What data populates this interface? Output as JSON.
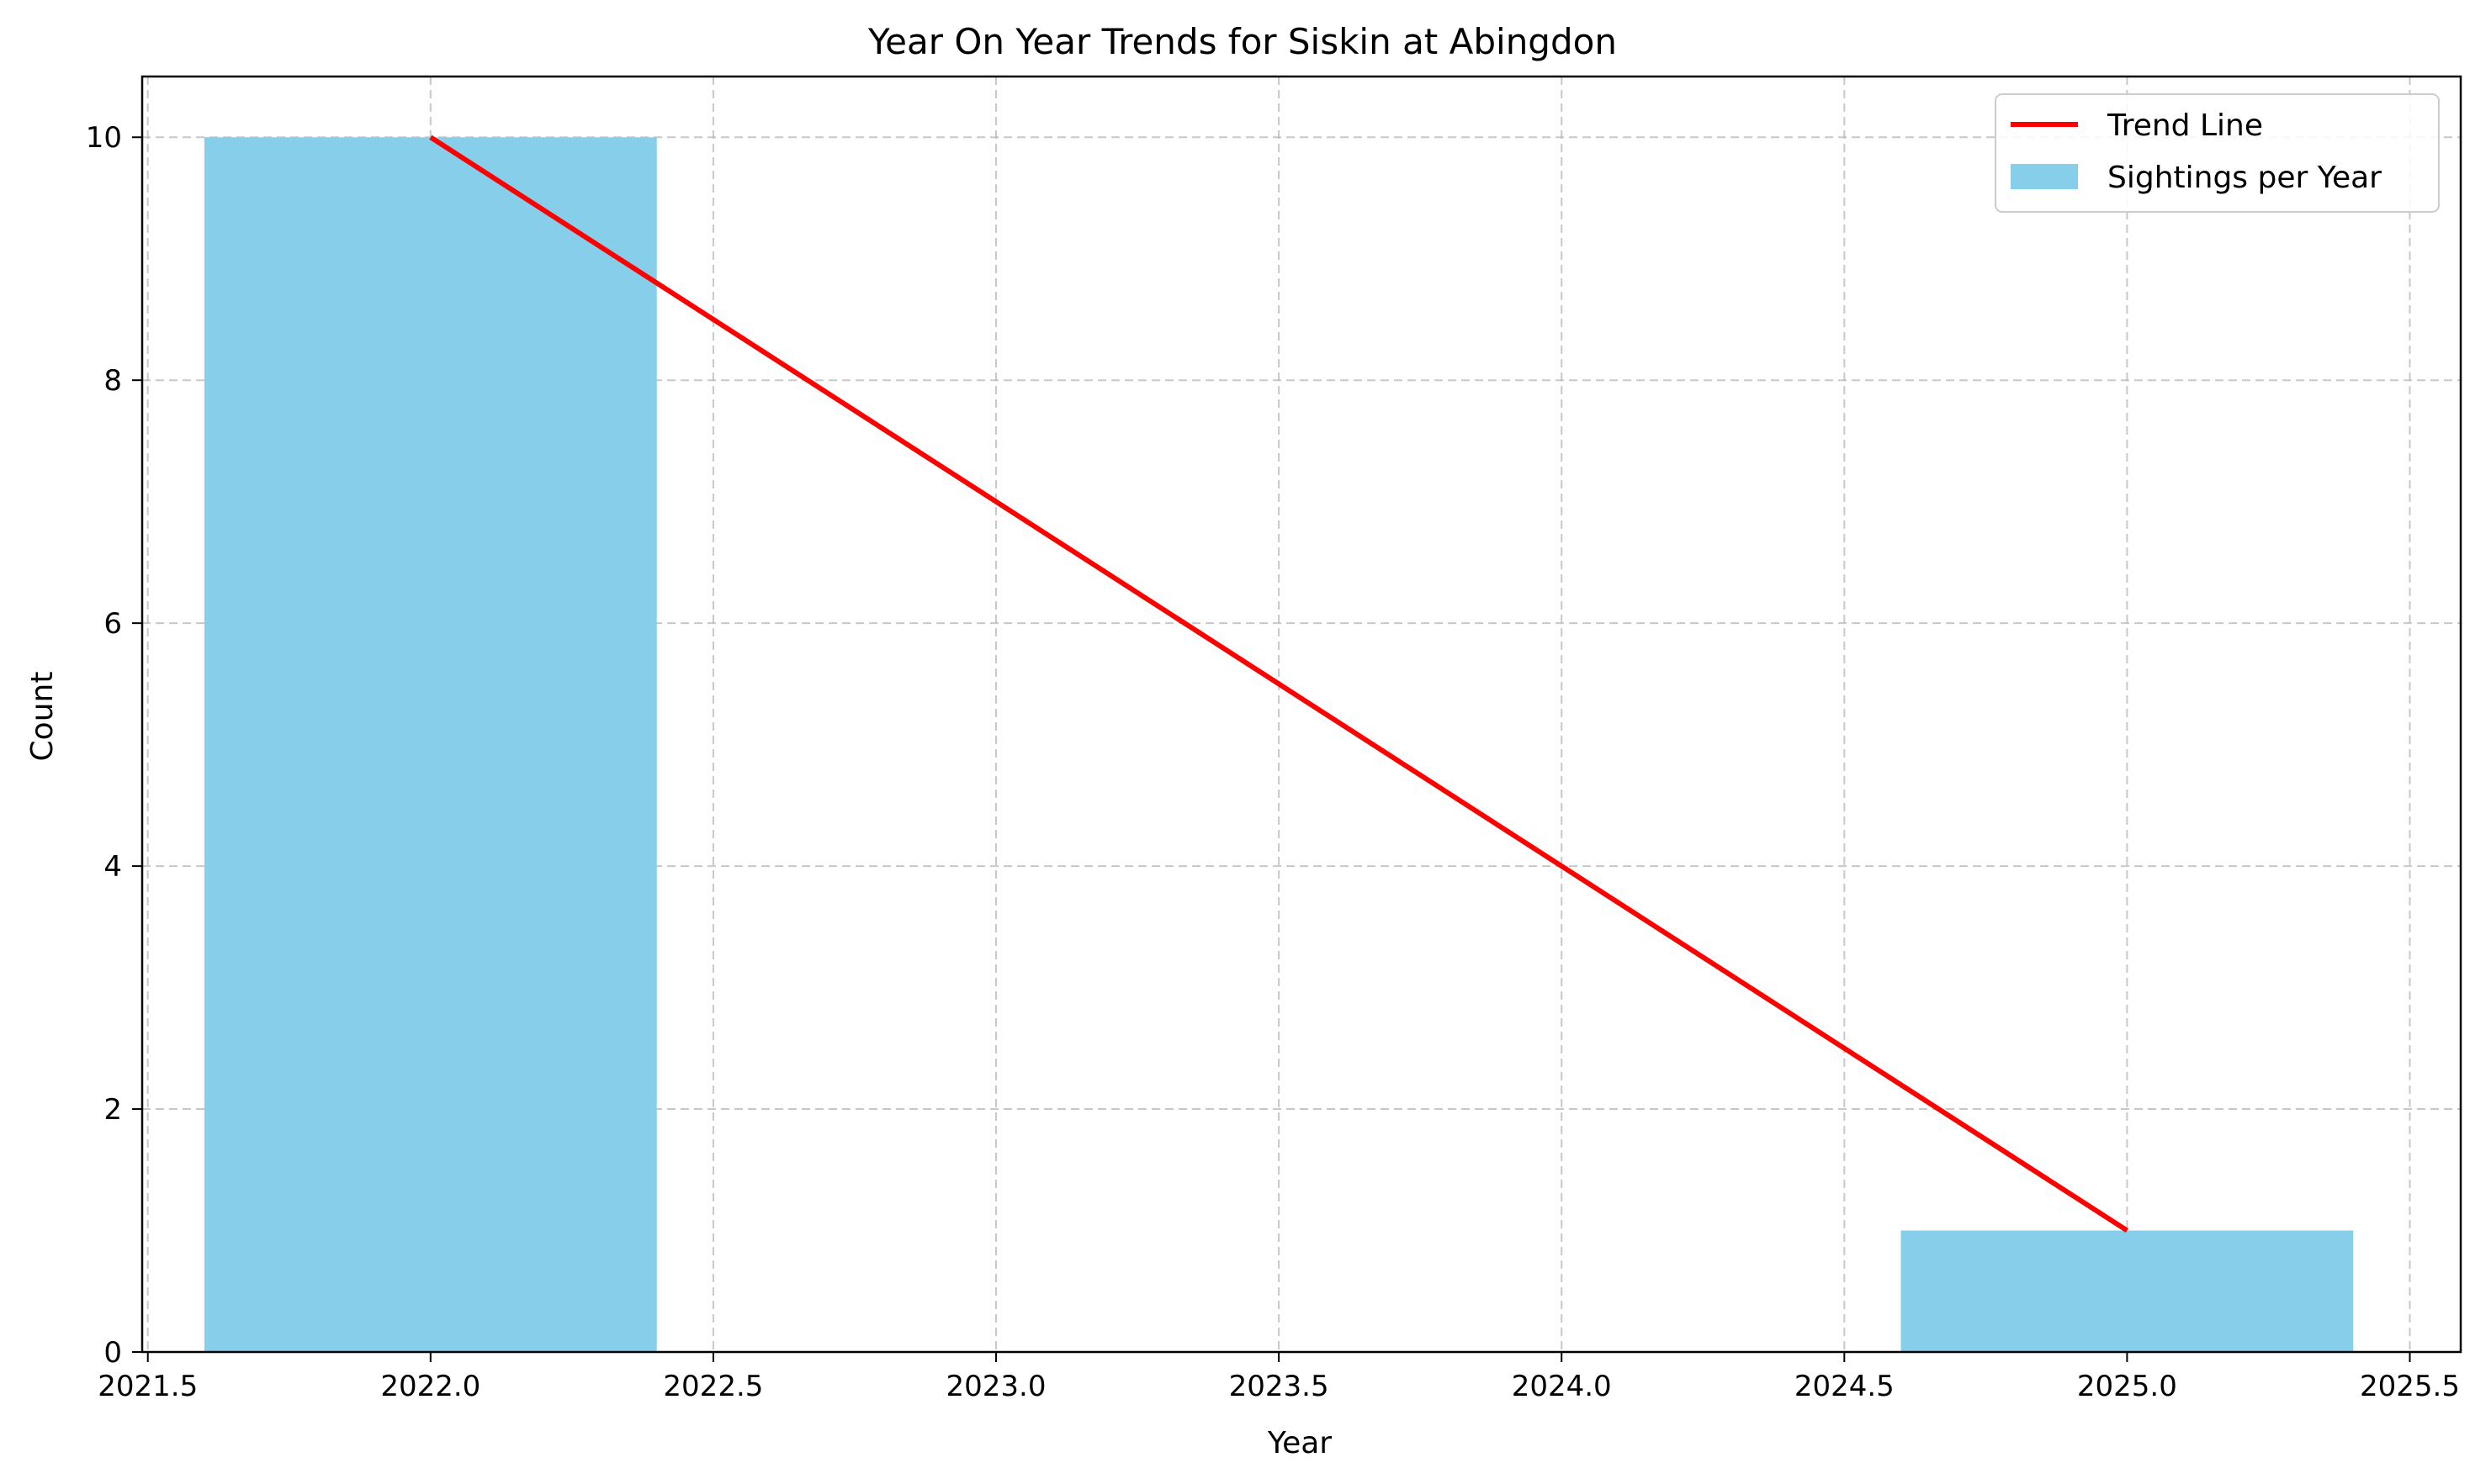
{
  "chart_data": {
    "type": "bar",
    "title": "Year On Year Trends for Siskin at Abingdon",
    "xlabel": "Year",
    "ylabel": "Count",
    "xlim": [
      2021.49,
      2025.59
    ],
    "ylim": [
      0,
      10.5
    ],
    "x_ticks": [
      2021.5,
      2022.0,
      2022.5,
      2023.0,
      2023.5,
      2024.0,
      2024.5,
      2025.0,
      2025.5
    ],
    "x_tick_labels": [
      "2021.5",
      "2022.0",
      "2022.5",
      "2023.0",
      "2023.5",
      "2024.0",
      "2024.5",
      "2025.0",
      "2025.5"
    ],
    "y_ticks": [
      0,
      2,
      4,
      6,
      8,
      10
    ],
    "y_tick_labels": [
      "0",
      "2",
      "4",
      "6",
      "8",
      "10"
    ],
    "grid": true,
    "legend_position": "top-right",
    "bar_width": 0.8,
    "series": [
      {
        "name": "Sightings per Year",
        "kind": "bar",
        "color": "#87CEEB",
        "x": [
          2022,
          2025
        ],
        "values": [
          10,
          1
        ]
      },
      {
        "name": "Trend Line",
        "kind": "line",
        "color": "#FF0000",
        "x": [
          2022,
          2025
        ],
        "values": [
          10,
          1
        ]
      }
    ]
  }
}
